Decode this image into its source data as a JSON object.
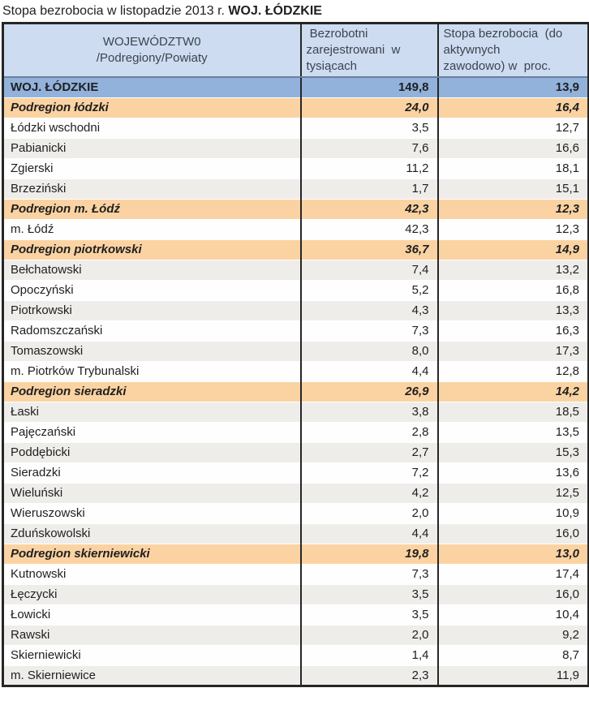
{
  "title": {
    "prefix": "Stopa bezrobocia w listopadzie 2013 r. ",
    "highlight": "WOJ. ŁÓDZKIE"
  },
  "colors": {
    "header_bg": "#cddcf0",
    "voivodeship_row_bg": "#92b2dc",
    "podregion_row_bg": "#fbd3a2",
    "powiat_row_bg": "#fefefe",
    "powiat_row_alt_bg": "#efedea",
    "border_dark": "#262626",
    "row_separator": "#ffffff",
    "text_dark": "#1f1f1f",
    "header_text": "#3c4350"
  },
  "table": {
    "columns": [
      {
        "id": "name",
        "header": "WOJEWÓDZTW0\n/Podregiony/Powiaty"
      },
      {
        "id": "unemployed_thousands",
        "header": " Bezrobotni\nzarejestrowani  w\ntysiącach"
      },
      {
        "id": "rate_percent",
        "header": "Stopa bezrobocia  (do\naktywnych\nzawodowo) w  proc."
      }
    ],
    "rows": [
      {
        "name": "WOJ. ŁÓDZKIE",
        "unemployed_thousands": "149,8",
        "rate_percent": "13,9",
        "type": "voivodeship"
      },
      {
        "name": "Podregion łódzki",
        "unemployed_thousands": "24,0",
        "rate_percent": "16,4",
        "type": "podregion"
      },
      {
        "name": "Łódzki wschodni",
        "unemployed_thousands": "3,5",
        "rate_percent": "12,7",
        "type": "powiat"
      },
      {
        "name": "Pabianicki",
        "unemployed_thousands": "7,6",
        "rate_percent": "16,6",
        "type": "powiat"
      },
      {
        "name": "Zgierski",
        "unemployed_thousands": "11,2",
        "rate_percent": "18,1",
        "type": "powiat"
      },
      {
        "name": "Brzeziński",
        "unemployed_thousands": "1,7",
        "rate_percent": "15,1",
        "type": "powiat"
      },
      {
        "name": "Podregion m. Łódź",
        "unemployed_thousands": "42,3",
        "rate_percent": "12,3",
        "type": "podregion"
      },
      {
        "name": "m. Łódź",
        "unemployed_thousands": "42,3",
        "rate_percent": "12,3",
        "type": "powiat"
      },
      {
        "name": "Podregion piotrkowski",
        "unemployed_thousands": "36,7",
        "rate_percent": "14,9",
        "type": "podregion"
      },
      {
        "name": "Bełchatowski",
        "unemployed_thousands": "7,4",
        "rate_percent": "13,2",
        "type": "powiat"
      },
      {
        "name": "Opoczyński",
        "unemployed_thousands": "5,2",
        "rate_percent": "16,8",
        "type": "powiat"
      },
      {
        "name": "Piotrkowski",
        "unemployed_thousands": "4,3",
        "rate_percent": "13,3",
        "type": "powiat"
      },
      {
        "name": "Radomszczański",
        "unemployed_thousands": "7,3",
        "rate_percent": "16,3",
        "type": "powiat"
      },
      {
        "name": "Tomaszowski",
        "unemployed_thousands": "8,0",
        "rate_percent": "17,3",
        "type": "powiat"
      },
      {
        "name": "m. Piotrków Trybunalski",
        "unemployed_thousands": "4,4",
        "rate_percent": "12,8",
        "type": "powiat"
      },
      {
        "name": "Podregion sieradzki",
        "unemployed_thousands": "26,9",
        "rate_percent": "14,2",
        "type": "podregion"
      },
      {
        "name": "Łaski",
        "unemployed_thousands": "3,8",
        "rate_percent": "18,5",
        "type": "powiat"
      },
      {
        "name": "Pajęczański",
        "unemployed_thousands": "2,8",
        "rate_percent": "13,5",
        "type": "powiat"
      },
      {
        "name": "Poddębicki",
        "unemployed_thousands": "2,7",
        "rate_percent": "15,3",
        "type": "powiat"
      },
      {
        "name": "Sieradzki",
        "unemployed_thousands": "7,2",
        "rate_percent": "13,6",
        "type": "powiat"
      },
      {
        "name": "Wieluński",
        "unemployed_thousands": "4,2",
        "rate_percent": "12,5",
        "type": "powiat"
      },
      {
        "name": "Wieruszowski",
        "unemployed_thousands": "2,0",
        "rate_percent": "10,9",
        "type": "powiat"
      },
      {
        "name": "Zduńskowolski",
        "unemployed_thousands": "4,4",
        "rate_percent": "16,0",
        "type": "powiat"
      },
      {
        "name": "Podregion skierniewicki",
        "unemployed_thousands": "19,8",
        "rate_percent": "13,0",
        "type": "podregion"
      },
      {
        "name": "Kutnowski",
        "unemployed_thousands": "7,3",
        "rate_percent": "17,4",
        "type": "powiat"
      },
      {
        "name": "Łęczycki",
        "unemployed_thousands": "3,5",
        "rate_percent": "16,0",
        "type": "powiat"
      },
      {
        "name": "Łowicki",
        "unemployed_thousands": "3,5",
        "rate_percent": "10,4",
        "type": "powiat"
      },
      {
        "name": "Rawski",
        "unemployed_thousands": "2,0",
        "rate_percent": "9,2",
        "type": "powiat"
      },
      {
        "name": "Skierniewicki",
        "unemployed_thousands": "1,4",
        "rate_percent": "8,7",
        "type": "powiat"
      },
      {
        "name": "m. Skierniewice",
        "unemployed_thousands": "2,3",
        "rate_percent": "11,9",
        "type": "powiat"
      }
    ]
  }
}
